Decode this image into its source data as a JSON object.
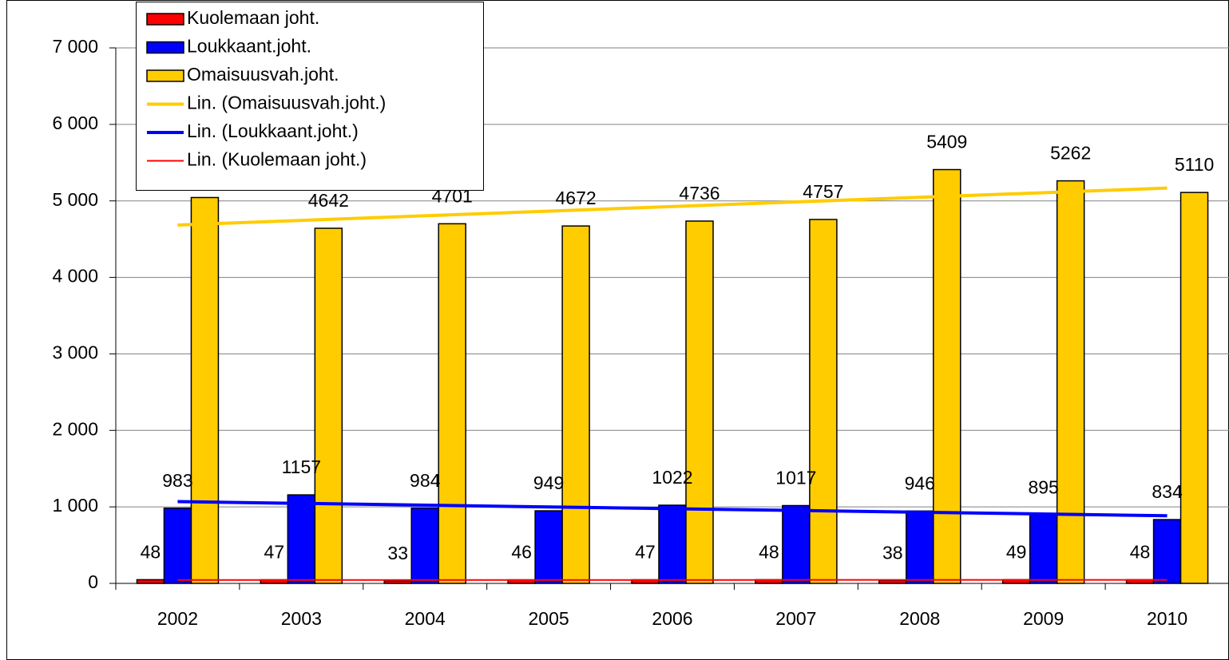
{
  "chart_data": {
    "type": "bar",
    "categories": [
      "2002",
      "2003",
      "2004",
      "2005",
      "2006",
      "2007",
      "2008",
      "2009",
      "2010"
    ],
    "series": [
      {
        "name": "Kuolemaan joht.",
        "color": "#ff0000",
        "values": [
          48,
          47,
          33,
          46,
          47,
          48,
          38,
          49,
          48
        ]
      },
      {
        "name": "Loukkaant.joht.",
        "color": "#0000ff",
        "values": [
          983,
          1157,
          984,
          949,
          1022,
          1017,
          946,
          895,
          834
        ]
      },
      {
        "name": "Omaisuusvah.joht.",
        "color": "#ffcc00",
        "values": [
          5044,
          4642,
          4701,
          4672,
          4736,
          4757,
          5409,
          5262,
          5110
        ]
      }
    ],
    "trendlines": [
      {
        "name": "Lin. (Omaisuusvah.joht.)",
        "series": 2,
        "color": "#ffcc00"
      },
      {
        "name": "Lin. (Loukkaant.joht.)",
        "series": 1,
        "color": "#0000ff"
      },
      {
        "name": "Lin. (Kuolemaan joht.)",
        "series": 0,
        "color": "#ff0000"
      }
    ],
    "ylim": [
      0,
      7000
    ],
    "yticks": [
      0,
      {
        "value": 1000,
        "label": "1 000"
      },
      {
        "value": 2000,
        "label": "2 000"
      },
      {
        "value": 3000,
        "label": "3 000"
      },
      {
        "value": 4000,
        "label": "4 000"
      },
      {
        "value": 5000,
        "label": "5 000"
      },
      {
        "value": 6000,
        "label": "6 000"
      },
      {
        "value": 7000,
        "label": "7 000"
      }
    ],
    "grid": true,
    "legend": "top-left"
  }
}
